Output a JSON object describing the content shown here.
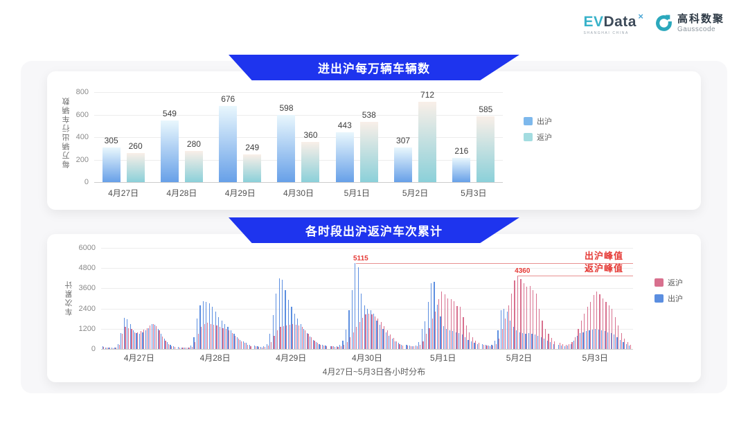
{
  "logo": {
    "evdata": {
      "ev": "EV",
      "data": "Data",
      "sup": "×",
      "sub": "SHANGHAI CHINA"
    },
    "gausscode": {
      "cn": "高科数聚",
      "en": "Gausscode"
    }
  },
  "colors": {
    "banner_bg": "#1e34ee",
    "bar_blue_top": "#e9f7fd",
    "bar_blue_bottom": "#67a0e8",
    "bar_teal_top": "#f9efe8",
    "bar_teal_bottom": "#8bd0d9",
    "hour_blue": "#5b8ee0",
    "hour_pink": "#d8708e",
    "legend1_blue": "#7db8ec",
    "legend1_teal": "#a3dce0",
    "annotation_line": "#e89090",
    "annotation_text": "#e53935",
    "brand_teal": "#2ba8bc"
  },
  "chart_data": [
    {
      "type": "bar",
      "title": "进出沪每万辆车辆数",
      "ylabel": "每万辆出行车辆数",
      "categories": [
        "4月27日",
        "4月28日",
        "4月29日",
        "4月30日",
        "5月1日",
        "5月2日",
        "5月3日"
      ],
      "series": [
        {
          "name": "出沪",
          "values": [
            305,
            549,
            676,
            598,
            443,
            307,
            216
          ]
        },
        {
          "name": "返沪",
          "values": [
            260,
            280,
            249,
            360,
            538,
            712,
            585
          ]
        }
      ],
      "ylim": [
        0,
        800
      ],
      "yticks": [
        0,
        200,
        400,
        600,
        800
      ],
      "legend_position": "right",
      "grid": true
    },
    {
      "type": "bar",
      "title": "各时段出沪返沪车次累计",
      "ylabel": "车次累计",
      "xlabel": "4月27日~5月3日各小时分布",
      "categories": [
        "4月27日",
        "4月28日",
        "4月29日",
        "4月30日",
        "5月1日",
        "5月2日",
        "5月3日"
      ],
      "hours_per_day": 24,
      "ylim": [
        0,
        6000
      ],
      "yticks": [
        0,
        1200,
        2400,
        3600,
        4800,
        6000
      ],
      "legend_order": [
        "返沪",
        "出沪"
      ],
      "series": [
        {
          "name": "出沪",
          "values": [
            150,
            100,
            80,
            70,
            100,
            300,
            950,
            1850,
            1750,
            1500,
            1100,
            950,
            900,
            1000,
            1100,
            1250,
            1500,
            1450,
            1200,
            900,
            600,
            400,
            250,
            150,
            120,
            100,
            90,
            100,
            200,
            700,
            1800,
            2600,
            2850,
            2800,
            2700,
            2500,
            2200,
            1900,
            1700,
            1500,
            1300,
            1100,
            900,
            700,
            550,
            450,
            350,
            250,
            200,
            150,
            120,
            150,
            300,
            900,
            2000,
            3300,
            4200,
            4100,
            3500,
            2900,
            2500,
            2100,
            1800,
            1500,
            1200,
            950,
            750,
            550,
            400,
            300,
            250,
            200,
            180,
            150,
            150,
            250,
            500,
            1150,
            2300,
            3500,
            5115,
            4850,
            3300,
            2600,
            2400,
            2300,
            2100,
            1700,
            1450,
            1200,
            1000,
            800,
            600,
            450,
            350,
            250,
            250,
            200,
            180,
            200,
            400,
            1200,
            1650,
            2800,
            3890,
            3990,
            2630,
            1930,
            1370,
            1200,
            1100,
            1050,
            1000,
            950,
            850,
            700,
            550,
            450,
            350,
            300,
            300,
            250,
            200,
            250,
            500,
            1100,
            2300,
            2400,
            2200,
            1700,
            1300,
            1100,
            1000,
            950,
            900,
            950,
            900,
            850,
            800,
            700,
            600,
            500,
            400,
            300,
            250,
            200,
            180,
            200,
            300,
            500,
            800,
            950,
            1000,
            1050,
            1100,
            1150,
            1200,
            1150,
            1100,
            1050,
            1000,
            950,
            850,
            700,
            550,
            400,
            300,
            200
          ]
        },
        {
          "name": "返沪",
          "values": [
            120,
            90,
            70,
            60,
            90,
            250,
            900,
            1300,
            1250,
            1200,
            1000,
            1000,
            1050,
            1150,
            1250,
            1400,
            1500,
            1350,
            1100,
            750,
            500,
            300,
            180,
            120,
            100,
            80,
            70,
            80,
            120,
            400,
            900,
            1300,
            1500,
            1550,
            1500,
            1450,
            1400,
            1300,
            1250,
            1200,
            1100,
            950,
            800,
            600,
            450,
            350,
            250,
            180,
            150,
            120,
            100,
            120,
            200,
            400,
            800,
            1100,
            1300,
            1350,
            1400,
            1450,
            1500,
            1450,
            1400,
            1300,
            1100,
            900,
            700,
            500,
            350,
            250,
            200,
            150,
            150,
            120,
            120,
            180,
            250,
            400,
            700,
            1000,
            1300,
            1600,
            1850,
            2050,
            2100,
            2050,
            1950,
            1800,
            1600,
            1350,
            1100,
            850,
            650,
            450,
            300,
            200,
            200,
            150,
            150,
            180,
            250,
            450,
            900,
            1250,
            1800,
            2200,
            2980,
            3400,
            3260,
            3020,
            2940,
            2840,
            2560,
            2490,
            1900,
            1400,
            1000,
            700,
            500,
            350,
            250,
            200,
            180,
            220,
            300,
            600,
            1200,
            1800,
            2600,
            3300,
            4050,
            4360,
            4150,
            3900,
            3700,
            3750,
            3500,
            3300,
            2400,
            1700,
            1200,
            900,
            650,
            450,
            350,
            300,
            250,
            280,
            400,
            700,
            1200,
            1700,
            2100,
            2500,
            2800,
            3200,
            3400,
            3250,
            3000,
            2800,
            2600,
            2400,
            1900,
            1400,
            950,
            600,
            400,
            250
          ]
        }
      ],
      "annotations": [
        {
          "label": "出沪峰值",
          "value_label": "5115",
          "value": 5115,
          "day_index": 3,
          "hour": 8
        },
        {
          "label": "返沪峰值",
          "value_label": "4360",
          "value": 4360,
          "day_index": 5,
          "hour": 11
        }
      ]
    }
  ]
}
